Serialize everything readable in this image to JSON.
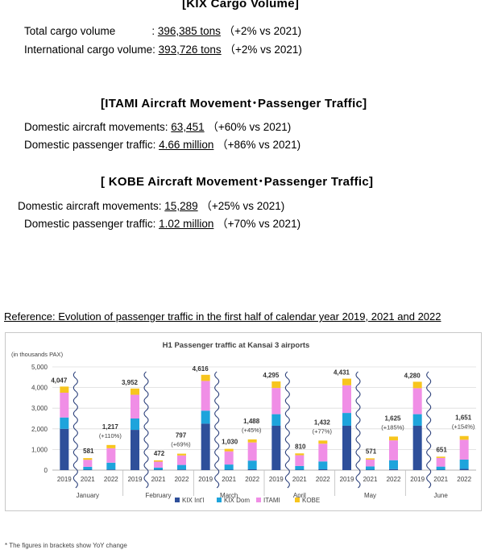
{
  "kix": {
    "title": "[KIX Cargo Volume]",
    "rows": [
      {
        "label": "Total cargo volume",
        "sep": "            : ",
        "value": "396,385 tons",
        "change": "（+2% vs 2021)"
      },
      {
        "label": "International cargo volume: ",
        "sep": "",
        "value": "393,726 tons",
        "change": "（+2% vs 2021)"
      }
    ]
  },
  "itami": {
    "title": "[ITAMI Aircraft Movement･Passenger Traffic]",
    "rows": [
      {
        "label": "Domestic aircraft movements: ",
        "value": "63,451",
        "change": "（+60% vs 2021)"
      },
      {
        "label": "Domestic passenger traffic: ",
        "value": "4.66 million",
        "change": "（+86% vs 2021)"
      }
    ]
  },
  "kobe": {
    "title": "[ KOBE Aircraft Movement･Passenger Traffic]",
    "rows": [
      {
        "label": "Domestic aircraft movements: ",
        "value": "15,289",
        "change": "（+25% vs 2021)"
      },
      {
        "label": "Domestic passenger traffic: ",
        "value": "1.02 million",
        "change": "（+70% vs 2021)"
      }
    ]
  },
  "reference_title": "Reference: Evolution of passenger traffic in the first half of calendar year 2019, 2021 and 2022",
  "footnote": "* The figures in brackets show YoY change",
  "colors": {
    "kix_intl": "#2e4f9a",
    "kix_dom": "#1ea4dc",
    "itami": "#f08ee6",
    "kobe": "#f7c51e"
  },
  "chart_data": {
    "type": "bar",
    "stacked": true,
    "title": "H1 Passenger traffic at Kansai 3 airports",
    "ylabel": "(in thousands PAX)",
    "ylim": [
      0,
      5000
    ],
    "yticks": [
      "0",
      "1,000",
      "2,000",
      "3,000",
      "4,000",
      "5,000"
    ],
    "grid": true,
    "legend_position": "bottom",
    "months": [
      "January",
      "February",
      "March",
      "April",
      "May",
      "June"
    ],
    "years": [
      "2019",
      "2021",
      "2022"
    ],
    "series": [
      {
        "name": "KIX Int'l",
        "color": "#2e4f9a",
        "values": [
          [
            2000,
            20,
            30
          ],
          [
            1950,
            20,
            30
          ],
          [
            2250,
            20,
            40
          ],
          [
            2150,
            20,
            40
          ],
          [
            2150,
            20,
            50
          ],
          [
            2150,
            20,
            60
          ]
        ]
      },
      {
        "name": "KIX Dom",
        "color": "#1ea4dc",
        "values": [
          [
            550,
            140,
            330
          ],
          [
            550,
            100,
            220
          ],
          [
            630,
            250,
            420
          ],
          [
            560,
            180,
            380
          ],
          [
            620,
            160,
            430
          ],
          [
            560,
            150,
            450
          ]
        ]
      },
      {
        "name": "ITAMI",
        "color": "#f08ee6",
        "values": [
          [
            1200,
            340,
            700
          ],
          [
            1150,
            290,
            460
          ],
          [
            1440,
            640,
            880
          ],
          [
            1270,
            520,
            860
          ],
          [
            1340,
            330,
            960
          ],
          [
            1260,
            420,
            960
          ]
        ]
      },
      {
        "name": "KOBE",
        "color": "#f7c51e",
        "values": [
          [
            297,
            81,
            157
          ],
          [
            302,
            62,
            87
          ],
          [
            296,
            120,
            148
          ],
          [
            315,
            90,
            152
          ],
          [
            321,
            61,
            185
          ],
          [
            310,
            61,
            181
          ]
        ]
      }
    ],
    "totals": [
      [
        "4,047",
        "581",
        "1,217"
      ],
      [
        "3,952",
        "472",
        "797"
      ],
      [
        "4,616",
        "1,030",
        "1,488"
      ],
      [
        "4,295",
        "810",
        "1,432"
      ],
      [
        "4,431",
        "571",
        "1,625"
      ],
      [
        "4,280",
        "651",
        "1,651"
      ]
    ],
    "changes": [
      "(+110%)",
      "(+69%)",
      "(+45%)",
      "(+77%)",
      "(+185%)",
      "(+154%)"
    ]
  }
}
